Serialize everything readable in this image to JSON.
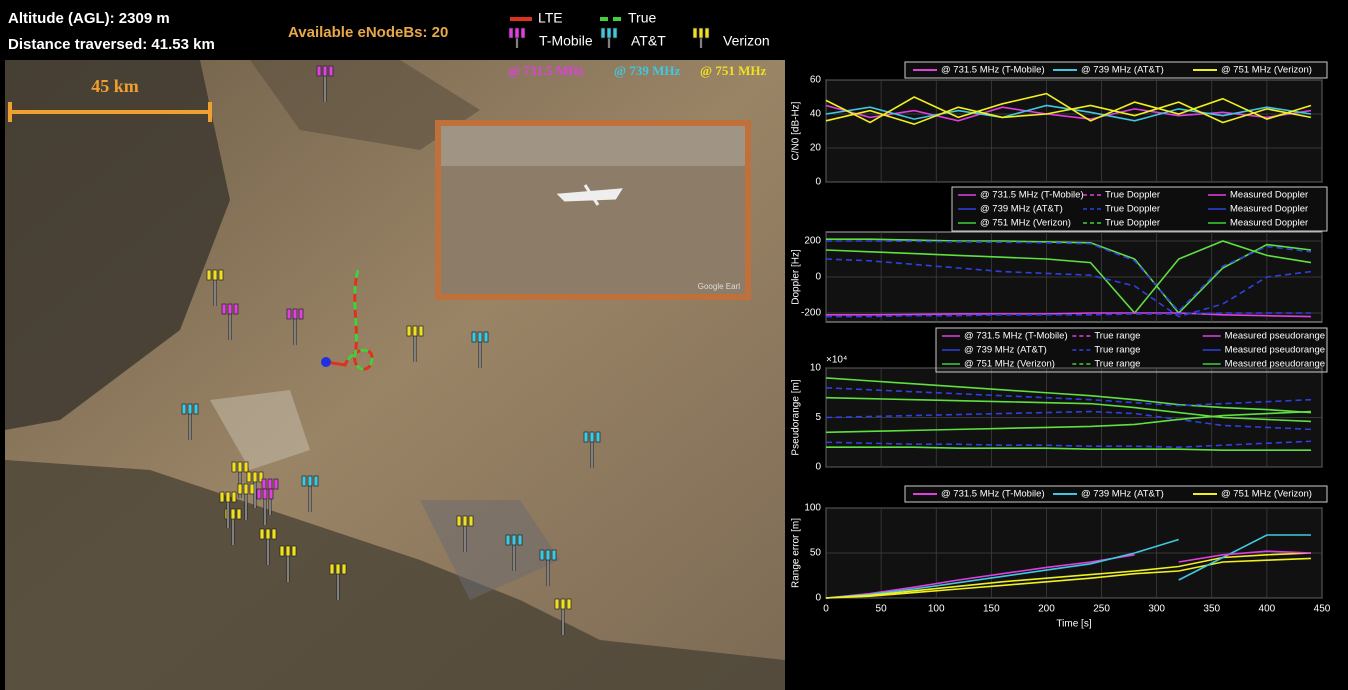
{
  "header": {
    "altitude": "Altitude (AGL): 2309 m",
    "distance": "Distance traversed: 41.53 km",
    "enodebs": "Available eNodeBs: 20",
    "legend": [
      {
        "label": "LTE",
        "color": "#e03020"
      },
      {
        "label": "True",
        "color": "#40d040"
      }
    ],
    "operators": [
      {
        "label": "T-Mobile",
        "color": "#e040e0"
      },
      {
        "label": "AT&T",
        "color": "#40c8e0"
      },
      {
        "label": "Verizon",
        "color": "#f0e020"
      }
    ],
    "frequencies": [
      {
        "label": "@ 731.5 MHz",
        "color": "#e040e0"
      },
      {
        "label": "@ 739 MHz",
        "color": "#40c8e0"
      },
      {
        "label": "@ 751 MHz",
        "color": "#f0e020"
      }
    ],
    "scale": "45 km",
    "inset_caption": "Google Earl"
  },
  "chart_data": [
    {
      "type": "line",
      "ylabel": "C/N0 [dB-Hz]",
      "xlim": [
        0,
        450
      ],
      "xticks": [
        0,
        50,
        100,
        150,
        200,
        250,
        300,
        350,
        400,
        450
      ],
      "ylim": [
        0,
        60
      ],
      "yticks": [
        0,
        20,
        40,
        60
      ],
      "grid": true,
      "legend": [
        {
          "label": "@ 731.5 MHz (T-Mobile)",
          "color": "#e040e0"
        },
        {
          "label": "@ 739 MHz (AT&T)",
          "color": "#40c8e0"
        },
        {
          "label": "@ 751 MHz (Verizon)",
          "color": "#f0f020"
        }
      ],
      "x": [
        0,
        40,
        80,
        120,
        160,
        200,
        240,
        280,
        320,
        360,
        400,
        440
      ],
      "series": [
        {
          "color": "#e040e0",
          "values": [
            45,
            38,
            42,
            36,
            44,
            40,
            37,
            43,
            39,
            41,
            38,
            42
          ]
        },
        {
          "color": "#40c8e0",
          "values": [
            40,
            44,
            37,
            42,
            38,
            45,
            41,
            36,
            43,
            39,
            44,
            40
          ]
        },
        {
          "color": "#f0f020",
          "values": [
            48,
            35,
            50,
            38,
            46,
            52,
            36,
            47,
            40,
            49,
            37,
            45
          ]
        },
        {
          "color": "#f0f020",
          "values": [
            36,
            42,
            34,
            44,
            38,
            40,
            45,
            39,
            47,
            35,
            43,
            38
          ]
        }
      ]
    },
    {
      "type": "line",
      "ylabel": "Doppler [Hz]",
      "xlim": [
        0,
        450
      ],
      "xticks": [
        0,
        50,
        100,
        150,
        200,
        250,
        300,
        350,
        400,
        450
      ],
      "ylim": [
        -250,
        250
      ],
      "yticks": [
        -200,
        0,
        200
      ],
      "grid": true,
      "legend_rows": [
        [
          "@ 731.5 MHz (T-Mobile)",
          "True Doppler",
          "Measured Doppler"
        ],
        [
          "@ 739 MHz (AT&T)",
          "True Doppler",
          "Measured Doppler"
        ],
        [
          "@ 751 MHz (Verizon)",
          "True Doppler",
          "Measured Doppler"
        ]
      ],
      "legend_colors": [
        "#e040e0",
        "#3040e0",
        "#40d040"
      ],
      "x": [
        0,
        40,
        80,
        120,
        160,
        200,
        240,
        280,
        320,
        360,
        400,
        440
      ],
      "series": [
        {
          "color": "#60e040",
          "values": [
            210,
            210,
            205,
            200,
            200,
            195,
            190,
            100,
            -200,
            50,
            180,
            150
          ]
        },
        {
          "color": "#3040e0",
          "style": "dashed",
          "values": [
            200,
            200,
            198,
            195,
            193,
            190,
            185,
            90,
            -190,
            60,
            170,
            140
          ]
        },
        {
          "color": "#60e040",
          "values": [
            150,
            140,
            130,
            120,
            110,
            100,
            80,
            -200,
            100,
            200,
            120,
            80
          ]
        },
        {
          "color": "#3040e0",
          "style": "dashed",
          "values": [
            100,
            90,
            70,
            50,
            30,
            20,
            10,
            -50,
            -220,
            -150,
            0,
            30
          ]
        },
        {
          "color": "#e040e0",
          "values": [
            -210,
            -210,
            -208,
            -205,
            -205,
            -205,
            -200,
            -200,
            -200,
            -210,
            -215,
            -220
          ]
        },
        {
          "color": "#3040e0",
          "style": "dashed",
          "values": [
            -220,
            -220,
            -215,
            -215,
            -210,
            -210,
            -210,
            -205,
            -205,
            -200,
            -200,
            -200
          ]
        }
      ]
    },
    {
      "type": "line",
      "ylabel": "Pseudorange [m]",
      "y_multiplier": "×10⁴",
      "xlim": [
        0,
        450
      ],
      "xticks": [
        0,
        50,
        100,
        150,
        200,
        250,
        300,
        350,
        400,
        450
      ],
      "ylim": [
        0,
        10
      ],
      "yticks": [
        0,
        5,
        10
      ],
      "grid": true,
      "legend_rows": [
        [
          "@ 731.5 MHz (T-Mobile)",
          "True range",
          "Measured pseudorange"
        ],
        [
          "@ 739 MHz (AT&T)",
          "True range",
          "Measured pseudorange"
        ],
        [
          "@ 751 MHz (Verizon)",
          "True range",
          "Measured pseudorange"
        ]
      ],
      "legend_colors": [
        "#e040e0",
        "#3040e0",
        "#40d040"
      ],
      "x": [
        0,
        40,
        80,
        120,
        160,
        200,
        240,
        280,
        320,
        360,
        400,
        440
      ],
      "series": [
        {
          "color": "#60e040",
          "values": [
            9,
            8.7,
            8.4,
            8.1,
            7.8,
            7.5,
            7.2,
            6.8,
            6.3,
            6.0,
            5.8,
            5.5
          ]
        },
        {
          "color": "#3040e0",
          "style": "dashed",
          "values": [
            8,
            7.8,
            7.6,
            7.4,
            7.2,
            7.0,
            6.8,
            6.5,
            6.2,
            6.4,
            6.6,
            6.8
          ]
        },
        {
          "color": "#60e040",
          "values": [
            7,
            6.9,
            6.8,
            6.7,
            6.6,
            6.5,
            6.4,
            6.0,
            5.5,
            5.0,
            4.8,
            4.6
          ]
        },
        {
          "color": "#3040e0",
          "style": "dashed",
          "values": [
            5,
            5.1,
            5.2,
            5.3,
            5.4,
            5.5,
            5.6,
            5.4,
            4.8,
            4.2,
            4.0,
            3.8
          ]
        },
        {
          "color": "#60e040",
          "values": [
            3.5,
            3.6,
            3.7,
            3.8,
            3.9,
            4.0,
            4.1,
            4.3,
            4.8,
            5.2,
            5.4,
            5.6
          ]
        },
        {
          "color": "#3040e0",
          "style": "dashed",
          "values": [
            2.5,
            2.4,
            2.3,
            2.3,
            2.2,
            2.2,
            2.1,
            2.1,
            2.0,
            2.2,
            2.4,
            2.6
          ]
        },
        {
          "color": "#60e040",
          "values": [
            2,
            2,
            2,
            1.9,
            1.9,
            1.9,
            1.8,
            1.8,
            1.8,
            1.7,
            1.7,
            1.7
          ]
        }
      ]
    },
    {
      "type": "line",
      "ylabel": "Range error [m]",
      "xlabel": "Time [s]",
      "xlim": [
        0,
        450
      ],
      "xticks": [
        0,
        50,
        100,
        150,
        200,
        250,
        300,
        350,
        400,
        450
      ],
      "ylim": [
        0,
        100
      ],
      "yticks": [
        0,
        50,
        100
      ],
      "grid": true,
      "legend": [
        {
          "label": "@ 731.5 MHz (T-Mobile)",
          "color": "#e040e0"
        },
        {
          "label": "@ 739 MHz (AT&T)",
          "color": "#40c8e0"
        },
        {
          "label": "@ 751 MHz (Verizon)",
          "color": "#f0f020"
        }
      ],
      "x": [
        0,
        40,
        80,
        120,
        160,
        200,
        240,
        280,
        320,
        360,
        400,
        440
      ],
      "series": [
        {
          "color": "#e040e0",
          "values": [
            0,
            5,
            12,
            20,
            27,
            34,
            40,
            48,
            null,
            null,
            null,
            null
          ]
        },
        {
          "color": "#40c8e0",
          "values": [
            0,
            4,
            10,
            17,
            24,
            31,
            38,
            50,
            65,
            null,
            null,
            null
          ]
        },
        {
          "color": "#f0f020",
          "values": [
            0,
            3,
            8,
            13,
            18,
            22,
            26,
            30,
            35,
            45,
            48,
            50
          ]
        },
        {
          "color": "#f0f020",
          "values": [
            0,
            2,
            6,
            10,
            14,
            18,
            22,
            27,
            30,
            40,
            42,
            44
          ]
        },
        {
          "color": "#40c8e0",
          "values": [
            null,
            null,
            null,
            null,
            null,
            null,
            null,
            null,
            20,
            45,
            70,
            70
          ]
        },
        {
          "color": "#e040e0",
          "values": [
            null,
            null,
            null,
            null,
            null,
            null,
            null,
            null,
            40,
            48,
            52,
            50
          ]
        }
      ]
    }
  ]
}
